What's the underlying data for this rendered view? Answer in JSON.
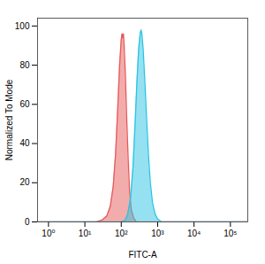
{
  "chart_data": {
    "type": "area",
    "x_label": "FITC-A",
    "y_label": "Normalized To Mode",
    "log": "x",
    "grid": false,
    "xlim": [
      0.5,
      300000
    ],
    "ylim": [
      0,
      104
    ],
    "xticks": [
      {
        "value": 1,
        "label": "10⁰"
      },
      {
        "value": 10,
        "label": "10¹"
      },
      {
        "value": 100,
        "label": "10²"
      },
      {
        "value": 1000,
        "label": "10³"
      },
      {
        "value": 10000,
        "label": "10⁴"
      },
      {
        "value": 100000,
        "label": "10⁵"
      }
    ],
    "yticks": [
      0,
      20,
      40,
      60,
      80,
      100
    ],
    "series": [
      {
        "color": "#e8595a",
        "x": [
          0.5,
          20,
          30,
          40,
          50,
          60,
          70,
          80,
          90,
          100,
          105,
          110,
          115,
          120,
          130,
          140,
          155,
          170,
          190,
          220,
          260,
          300000
        ],
        "values": [
          0,
          0,
          1,
          3,
          8,
          18,
          35,
          58,
          80,
          93,
          96,
          94,
          96,
          90,
          75,
          55,
          32,
          15,
          6,
          2,
          0,
          0
        ]
      },
      {
        "color": "#2bc3e3",
        "x": [
          0.5,
          100,
          130,
          150,
          180,
          210,
          240,
          270,
          300,
          330,
          350,
          370,
          400,
          450,
          500,
          560,
          630,
          720,
          850,
          1000,
          1300,
          300000
        ],
        "values": [
          0,
          0,
          1,
          4,
          12,
          28,
          50,
          72,
          88,
          96,
          98,
          96,
          88,
          70,
          52,
          34,
          20,
          10,
          4,
          1.5,
          0,
          0
        ]
      }
    ]
  }
}
